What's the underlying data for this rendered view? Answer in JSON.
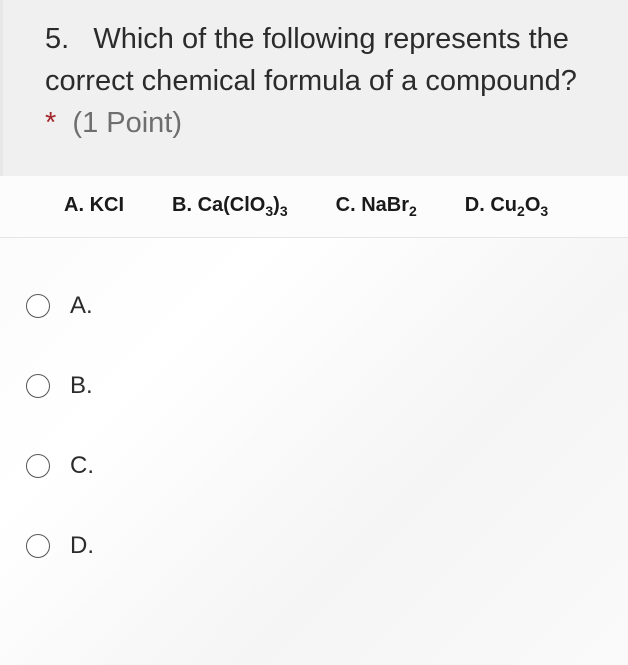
{
  "question": {
    "number": "5.",
    "text_line1": "Which of the following represents",
    "text_line2": "the correct chemical formula of a",
    "text_line3": "compound?",
    "required_mark": "*",
    "points": "(1 Point)"
  },
  "answer_choices": {
    "a": {
      "letter": "A.",
      "formula_pre": "KCI",
      "formula_sub": ""
    },
    "b": {
      "letter": "B.",
      "formula_pre": "Ca(ClO",
      "formula_sub": "3",
      "formula_post": ")",
      "formula_sub2": "3"
    },
    "c": {
      "letter": "C.",
      "formula_pre": "NaBr",
      "formula_sub": "2"
    },
    "d": {
      "letter": "D.",
      "formula_pre": "Cu",
      "formula_sub": "2",
      "formula_post": "O",
      "formula_sub2": "3"
    }
  },
  "options": {
    "a": "A.",
    "b": "B.",
    "c": "C.",
    "d": "D."
  },
  "colors": {
    "header_bg": "#f0f0f0",
    "strip_bg": "#fcfcfc",
    "text": "#2b2b2b",
    "required": "#a4262c",
    "points": "#6e6e6e",
    "radio_border": "#555"
  },
  "typography": {
    "question_fontsize": 29,
    "strip_fontsize": 20,
    "option_fontsize": 24
  }
}
